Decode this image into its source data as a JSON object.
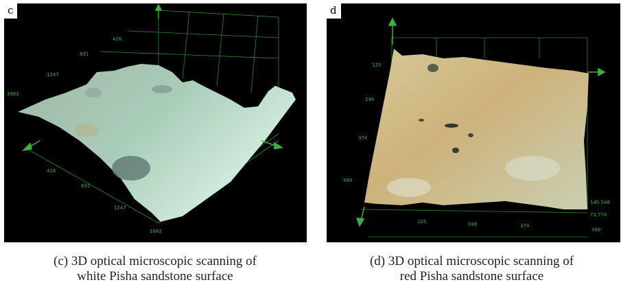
{
  "panel_c": {
    "letter": "c",
    "ticks": [
      "416",
      "831",
      "1247",
      "1662",
      "416",
      "831",
      "1247",
      "1662"
    ],
    "caption_line1": "(c) 3D optical microscopic scanning of",
    "caption_line2": "white Pisha sandstone surface"
  },
  "panel_d": {
    "letter": "d",
    "ticks": [
      "125",
      "249",
      "374",
      "499",
      "125",
      "249",
      "374",
      "499",
      "145.548",
      "72.774"
    ],
    "caption_line1": "(d) 3D optical microscopic scanning of",
    "caption_line2": "red Pisha sandstone surface"
  },
  "colors": {
    "axis_green": "#3fb03f",
    "white_surface": "#b9d8c6",
    "red_surface": "#cdb98a"
  }
}
